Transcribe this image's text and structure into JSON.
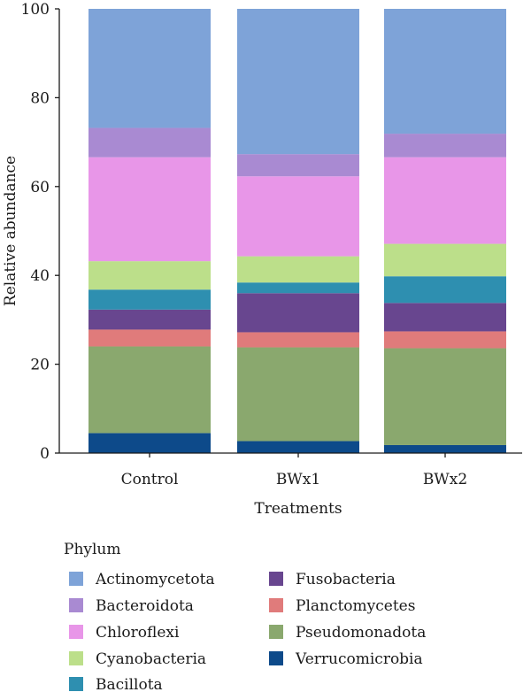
{
  "chart_data": {
    "type": "bar",
    "stacked": true,
    "categories": [
      "Control",
      "BWx1",
      "BWx2"
    ],
    "xlabel": "Treatments",
    "ylabel": "Relative abundance",
    "ylim": [
      0,
      100
    ],
    "yticks": [
      0,
      20,
      40,
      60,
      80,
      100
    ],
    "grid": false,
    "legend": {
      "title": "Phylum",
      "placement": "bottom"
    },
    "series": [
      {
        "name": "Verrucomicrobia",
        "color": "#0d4a8a",
        "values": [
          4.5,
          2.7,
          1.8
        ]
      },
      {
        "name": "Pseudomonadota",
        "color": "#8aa86e",
        "values": [
          19.5,
          21.1,
          21.8
        ]
      },
      {
        "name": "Planctomycetes",
        "color": "#e07b7b",
        "values": [
          3.8,
          3.4,
          3.8
        ]
      },
      {
        "name": "Fusobacteria",
        "color": "#68468f",
        "values": [
          4.5,
          8.8,
          6.4
        ]
      },
      {
        "name": "Bacillota",
        "color": "#2e8fb0",
        "values": [
          4.5,
          2.4,
          6.0
        ]
      },
      {
        "name": "Cyanobacteria",
        "color": "#bcdf8a",
        "values": [
          6.4,
          5.9,
          7.3
        ]
      },
      {
        "name": "Chloroflexi",
        "color": "#e896e8",
        "values": [
          23.4,
          18.0,
          19.5
        ]
      },
      {
        "name": "Bacteroidota",
        "color": "#a98ad2",
        "values": [
          6.6,
          5.0,
          5.3
        ]
      },
      {
        "name": "Actinomycetota",
        "color": "#7ea3d8",
        "values": [
          26.8,
          32.7,
          28.1
        ]
      }
    ],
    "legend_order": [
      "Actinomycetota",
      "Bacteroidota",
      "Chloroflexi",
      "Cyanobacteria",
      "Bacillota",
      "Fusobacteria",
      "Planctomycetes",
      "Pseudomonadota",
      "Verrucomicrobia"
    ]
  }
}
